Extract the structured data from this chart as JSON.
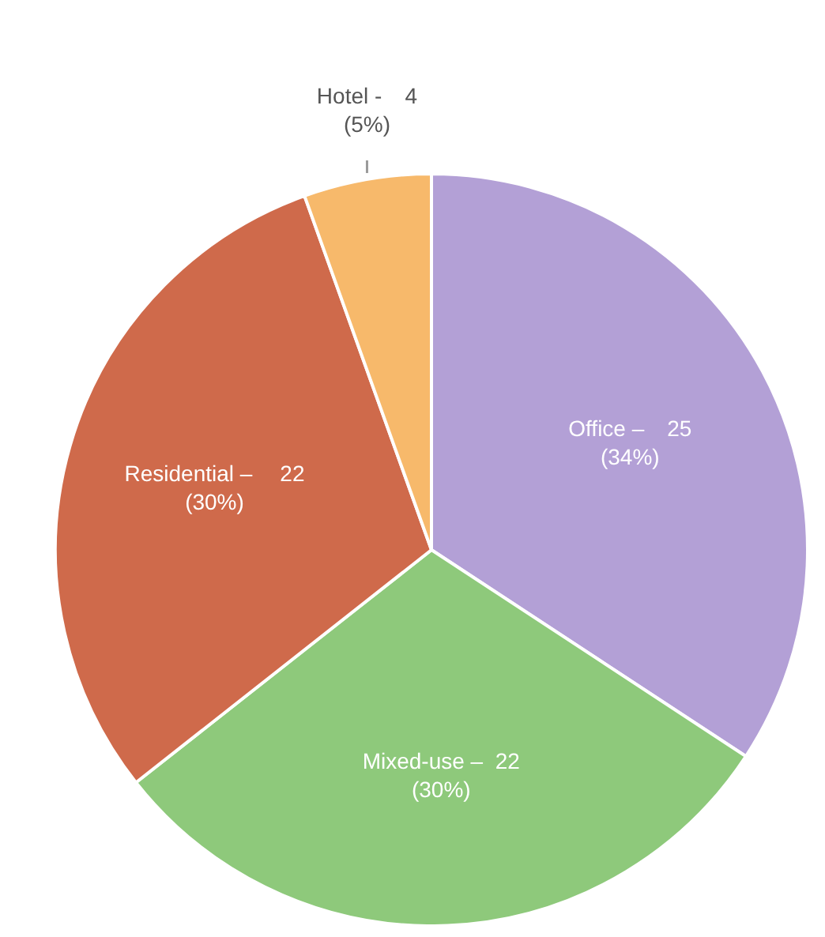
{
  "chart_data": {
    "type": "pie",
    "categories": [
      "Office –",
      "Mixed-use –",
      "Residential –",
      "Hotel -"
    ],
    "values": [
      25,
      22,
      22,
      4
    ],
    "colors": [
      "#b3a0d6",
      "#8ec97b",
      "#cf6a4b",
      "#f7b96b"
    ],
    "data_labels": true,
    "annotations": [
      "(34%)",
      "(30%)",
      "(30%)",
      "(5%)"
    ],
    "legend": false
  }
}
